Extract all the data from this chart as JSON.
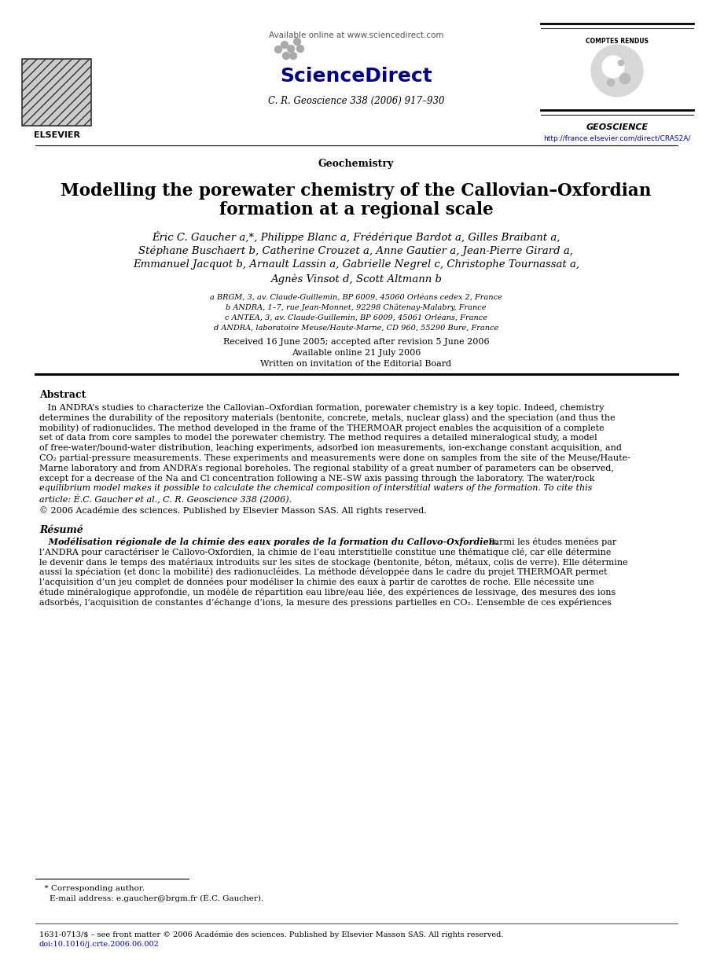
{
  "bg_color": "#ffffff",
  "header_available_online": "Available online at www.sciencedirect.com",
  "header_journal": "C. R. Geoscience 338 (2006) 917–930",
  "header_url": "http://france.elsevier.com/direct/CRAS2A/",
  "section_label": "Geochemistry",
  "title_line1": "Modelling the porewater chemistry of the Callovian–Oxfordian",
  "title_line2": "formation at a regional scale",
  "authors_line1": "Éric C. Gaucher a,*, Philippe Blanc a, Frédérique Bardot a, Gilles Braibant a,",
  "authors_line2": "Stéphane Buschaert b, Catherine Crouzet a, Anne Gautier a, Jean-Pierre Girard a,",
  "authors_line3": "Emmanuel Jacquot b, Arnault Lassin a, Gabrielle Negrel c, Christophe Tournassat a,",
  "authors_line4": "Agnès Vinsot d, Scott Altmann b",
  "affil_a": "a BRGM, 3, av. Claude-Guillemin, BP 6009, 45060 Orléans cedex 2, France",
  "affil_b": "b ANDRA, 1–7, rue Jean-Monnet, 92298 Châtenay-Malabry, France",
  "affil_c": "c ANTEA, 3, av. Claude-Guillemin, BP 6009, 45061 Orléans, France",
  "affil_d": "d ANDRA, laboratoire Meuse/Haute-Marne, CD 960, 55290 Bure, France",
  "received": "Received 16 June 2005; accepted after revision 5 June 2006",
  "available_online": "Available online 21 July 2006",
  "written_on": "Written on invitation of the Editorial Board",
  "abstract_title": "Abstract",
  "abstract_lines": [
    "   In ANDRA’s studies to characterize the Callovian–Oxfordian formation, porewater chemistry is a key topic. Indeed, chemistry",
    "determines the durability of the repository materials (bentonite, concrete, metals, nuclear glass) and the speciation (and thus the",
    "mobility) of radionuclides. The method developed in the frame of the THERMOAR project enables the acquisition of a complete",
    "set of data from core samples to model the porewater chemistry. The method requires a detailed mineralogical study, a model",
    "of free-water/bound-water distribution, leaching experiments, adsorbed ion measurements, ion-exchange constant acquisition, and",
    "CO₂ partial-pressure measurements. These experiments and measurements were done on samples from the site of the Meuse/Haute-",
    "Marne laboratory and from ANDRA’s regional boreholes. The regional stability of a great number of parameters can be observed,",
    "except for a decrease of the Na and Cl concentration following a NE–SW axis passing through the laboratory. The water/rock",
    "equilibrium model makes it possible to calculate the chemical composition of interstitial waters of the formation. To cite this",
    "article: É.C. Gaucher et al., C. R. Geoscience 338 (2006)."
  ],
  "abstract_cite_italic": true,
  "copyright_abstract": "© 2006 Académie des sciences. Published by Elsevier Masson SAS. All rights reserved.",
  "resume_title": "Résumé",
  "resume_lines": [
    "   Modélisation régionale de la chimie des eaux porales de la formation du Callovo-Oxfordien. Parmi les études menées par",
    "l’ANDRA pour caractériser le Callovo-Oxfordien, la chimie de l’eau interstitielle constitue une thématique clé, car elle détermine",
    "le devenir dans le temps des matériaux introduits sur les sites de stockage (bentonite, béton, métaux, colis de verre). Elle détermine",
    "aussi la spéciation (et donc la mobilité) des radionucléides. La méthode développée dans le cadre du projet THERMOAR permet",
    "l’acquisition d’un jeu complet de données pour modéliser la chimie des eaux à partir de carottes de roche. Elle nécessite une",
    "étude minéralogique approfondie, un modèle de répartition eau libre/eau liée, des expériences de lessivage, des mesures des ions",
    "adsorbés, l’acquisition de constantes d’échange d’ions, la mesure des pressions partielles en CO₂. L’ensemble de ces expériences"
  ],
  "footnote_star": "  * Corresponding author.",
  "footnote_email": "    E-mail address: e.gaucher@brgm.fr (É.C. Gaucher).",
  "footer_issn": "1631-0713/$ – see front matter © 2006 Académie des sciences. Published by Elsevier Masson SAS. All rights reserved.",
  "footer_doi": "doi:10.1016/j.crte.2006.06.002",
  "comptes_rendus_label": "COMPTES RENDUS",
  "geoscience_label": "GEOSCIENCE",
  "elsevier_label": "ELSEVIER",
  "sciencedirect_label": "ScienceDirect"
}
